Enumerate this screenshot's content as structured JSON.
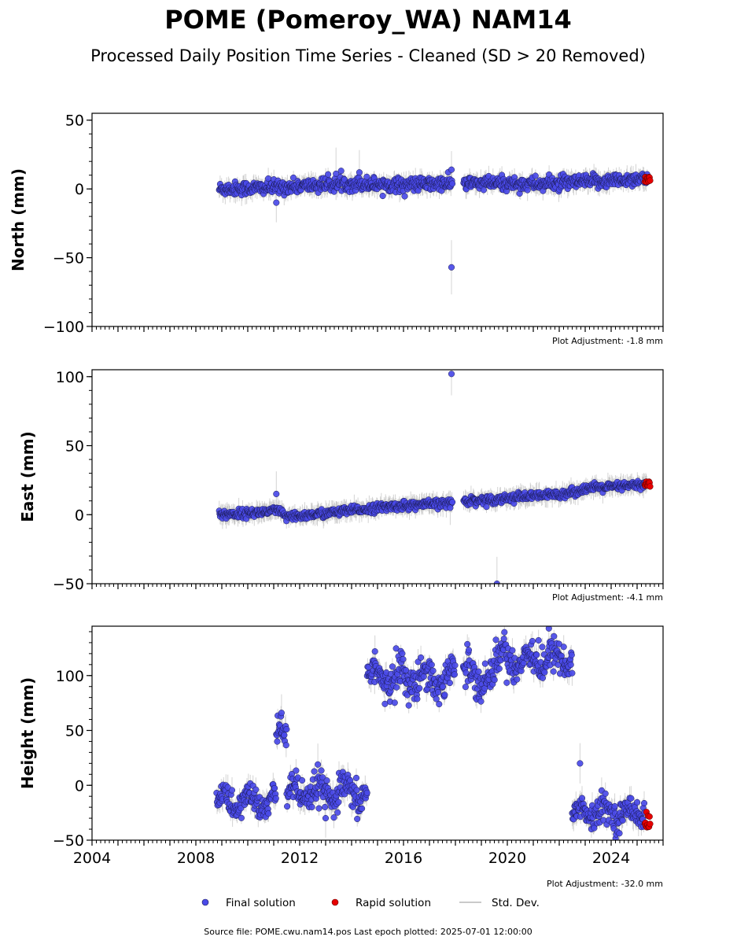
{
  "title": "POME (Pomeroy_WA) NAM14",
  "subtitle": "Processed Daily Position Time Series - Cleaned (SD > 20 Removed)",
  "legend": {
    "final": "Final solution",
    "rapid": "Rapid solution",
    "std": "Std. Dev."
  },
  "footer": "Source file: POME.cwu.nam14.pos  Last epoch plotted: 2025-07-01 12:00:00",
  "colors": {
    "final": "#4a4ae8",
    "final_edge": "#1a1a50",
    "rapid": "#e60000",
    "std": "#b0b0b0"
  },
  "chart_data": [
    {
      "type": "scatter",
      "ylabel": "North (mm)",
      "xlim": [
        2004,
        2026
      ],
      "ylim": [
        -100,
        55
      ],
      "yticks": [
        50,
        0,
        -50,
        -100
      ],
      "ytick_labels": [
        "50",
        "0",
        "−50",
        "−100"
      ],
      "xticks": [
        2004,
        2008,
        2012,
        2016,
        2020,
        2024
      ],
      "xtick_labels": [],
      "adjustment": "Plot Adjustment: -1.8 mm",
      "trend": [
        [
          2008.9,
          0
        ],
        [
          2011.0,
          1
        ],
        [
          2012.0,
          2
        ],
        [
          2013.0,
          3
        ],
        [
          2014.0,
          4
        ],
        [
          2015.0,
          3.5
        ],
        [
          2016.0,
          3
        ],
        [
          2017.0,
          3.5
        ],
        [
          2017.9,
          4
        ],
        [
          2018.4,
          4
        ],
        [
          2019.0,
          4
        ],
        [
          2020.0,
          4
        ],
        [
          2021.0,
          3.5
        ],
        [
          2022.0,
          4
        ],
        [
          2023.0,
          5
        ],
        [
          2024.0,
          6
        ],
        [
          2025.4,
          8
        ]
      ],
      "noise": 2.5,
      "gaps": [
        [
          2017.9,
          2018.3
        ]
      ],
      "outliers": [
        [
          2011.1,
          -10
        ],
        [
          2013.4,
          11
        ],
        [
          2014.3,
          12
        ],
        [
          2017.85,
          14
        ],
        [
          2017.85,
          -57
        ]
      ],
      "rapid": {
        "x": [
          2025.3,
          2025.5
        ],
        "y": [
          5,
          9
        ]
      }
    },
    {
      "type": "scatter",
      "ylabel": "East (mm)",
      "xlim": [
        2004,
        2026
      ],
      "ylim": [
        -50,
        105
      ],
      "yticks": [
        100,
        50,
        0,
        -50
      ],
      "ytick_labels": [
        "100",
        "50",
        "0",
        "−50"
      ],
      "xticks": [
        2004,
        2008,
        2012,
        2016,
        2020,
        2024
      ],
      "xtick_labels": [],
      "adjustment": "Plot Adjustment: -4.1 mm",
      "trend": [
        [
          2008.9,
          0
        ],
        [
          2010.0,
          1
        ],
        [
          2011.2,
          3
        ],
        [
          2011.5,
          -2
        ],
        [
          2012.5,
          0
        ],
        [
          2013.5,
          2
        ],
        [
          2014.5,
          4
        ],
        [
          2015.5,
          6
        ],
        [
          2016.5,
          7
        ],
        [
          2017.5,
          8
        ],
        [
          2018.4,
          10
        ],
        [
          2019.5,
          11
        ],
        [
          2020.5,
          13
        ],
        [
          2021.5,
          14
        ],
        [
          2022.5,
          16
        ],
        [
          2023.0,
          19
        ],
        [
          2024.0,
          20
        ],
        [
          2025.4,
          22
        ]
      ],
      "noise": 1.5,
      "gaps": [
        [
          2017.9,
          2018.3
        ]
      ],
      "outliers": [
        [
          2011.1,
          15
        ],
        [
          2017.85,
          102
        ],
        [
          2019.6,
          -50
        ],
        [
          2017.8,
          5
        ]
      ],
      "rapid": {
        "x": [
          2025.3,
          2025.5
        ],
        "y": [
          20,
          24
        ]
      }
    },
    {
      "type": "scatter",
      "ylabel": "Height (mm)",
      "xlim": [
        2004,
        2026
      ],
      "ylim": [
        -50,
        145
      ],
      "yticks": [
        100,
        50,
        0,
        -50
      ],
      "ytick_labels": [
        "100",
        "50",
        "0",
        "−50"
      ],
      "xticks": [
        2004,
        2008,
        2012,
        2016,
        2020,
        2024
      ],
      "xtick_labels": [
        "2004",
        "2008",
        "2012",
        "2016",
        "2020",
        "2024"
      ],
      "adjustment": "Plot Adjustment: -32.0 mm",
      "segments": [
        {
          "x": [
            2008.8,
            2011.1
          ],
          "base": -15,
          "amp": 8,
          "noise": 6
        },
        {
          "x": [
            2011.1,
            2011.5
          ],
          "base": 45,
          "amp": 5,
          "noise": 8
        },
        {
          "x": [
            2011.5,
            2014.6
          ],
          "base": -8,
          "amp": 8,
          "noise": 7
        },
        {
          "x": [
            2014.6,
            2018.0
          ],
          "base": 98,
          "amp": 10,
          "noise": 8
        },
        {
          "x": [
            2018.3,
            2019.6
          ],
          "base": 100,
          "amp": 10,
          "noise": 8
        },
        {
          "x": [
            2019.6,
            2022.5
          ],
          "base": 115,
          "amp": 8,
          "noise": 8
        },
        {
          "x": [
            2022.5,
            2025.3
          ],
          "base": -25,
          "amp": 6,
          "noise": 6
        }
      ],
      "outliers": [
        [
          2011.3,
          66
        ],
        [
          2012.7,
          19
        ],
        [
          2013.0,
          -30
        ],
        [
          2014.9,
          122
        ],
        [
          2021.6,
          143
        ],
        [
          2022.8,
          20
        ]
      ],
      "rapid": {
        "x": [
          2025.3,
          2025.5
        ],
        "y": [
          -40,
          -24
        ]
      }
    }
  ]
}
